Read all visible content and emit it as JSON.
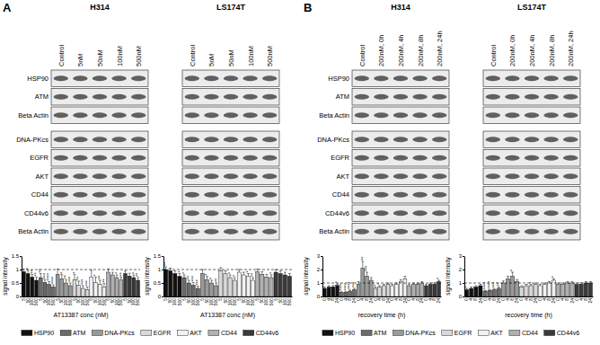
{
  "panels": [
    {
      "label": "A",
      "rows": [
        [
          "HSP90",
          "ATM",
          "Beta Actin"
        ],
        [
          "DNA-PKcs",
          "EGFR",
          "AKT",
          "CD44",
          "CD44v6",
          "Beta Actin"
        ]
      ],
      "blots": [
        {
          "title": "H314",
          "lanes": [
            "Control",
            "5nM",
            "50nM",
            "100nM",
            "500nM"
          ]
        },
        {
          "title": "LS174T",
          "lanes": [
            "Control",
            "5nM",
            "50nM",
            "100nM",
            "500nM"
          ]
        }
      ]
    },
    {
      "label": "B",
      "rows": [
        [
          "HSP90",
          "ATM",
          "Beta Actin"
        ],
        [
          "DNA-PKcs",
          "EGFR",
          "AKT",
          "CD44",
          "CD44v6",
          "Beta Actin"
        ]
      ],
      "blots": [
        {
          "title": "H314",
          "lanes": [
            "Control",
            "200nM, 0h",
            "200nM, 4h",
            "200nM, 8h",
            "200nM, 24h"
          ]
        },
        {
          "title": "LS174T",
          "lanes": [
            "Control",
            "200nM, 0h",
            "200nM, 4h",
            "200nM, 8h",
            "200nM, 24h"
          ]
        }
      ]
    }
  ],
  "chart_data": [
    {
      "type": "bar",
      "y_label": "signal intensity",
      "x_label": "AT13387 conc (nM)",
      "legend": "bottom",
      "categories": [
        "5",
        "50",
        "100",
        "500"
      ],
      "ylim": [
        0,
        1.5
      ],
      "yticks": [
        0,
        0.5,
        1,
        1.5
      ],
      "reference": 1,
      "series": [
        {
          "name": "HSP90",
          "color": "#111111",
          "values": [
            0.92,
            0.85,
            0.72,
            0.6
          ],
          "errors": [
            0.1,
            0.12,
            0.1,
            0.12
          ],
          "significance": [
            null,
            "*",
            "**",
            "**"
          ]
        },
        {
          "name": "ATM",
          "color": "#6b6b6b",
          "values": [
            0.7,
            0.52,
            0.45,
            0.35
          ],
          "errors": [
            0.15,
            0.1,
            0.1,
            0.08
          ],
          "significance": [
            "**",
            "***",
            "****",
            "****"
          ]
        },
        {
          "name": "DNA-PKcs",
          "color": "#9a9a9a",
          "values": [
            0.82,
            0.66,
            0.5,
            0.4
          ],
          "errors": [
            0.2,
            0.15,
            0.12,
            0.1
          ],
          "significance": [
            null,
            "*",
            "**",
            "***"
          ]
        },
        {
          "name": "EGFR",
          "color": "#d9d9d9",
          "values": [
            0.62,
            0.42,
            0.3,
            0.25
          ],
          "errors": [
            0.2,
            0.15,
            0.1,
            0.1
          ],
          "significance": [
            "*",
            "**",
            "***",
            "***"
          ]
        },
        {
          "name": "AKT",
          "color": "#f2f2f2",
          "values": [
            0.72,
            0.52,
            0.45,
            0.36
          ],
          "errors": [
            0.25,
            0.2,
            0.15,
            0.12
          ],
          "significance": [
            null,
            "*",
            "**",
            "**"
          ]
        },
        {
          "name": "CD44",
          "color": "#b0b0b0",
          "values": [
            0.9,
            0.8,
            0.7,
            0.62
          ],
          "errors": [
            0.12,
            0.1,
            0.1,
            0.1
          ],
          "significance": [
            null,
            null,
            "*",
            "**"
          ]
        },
        {
          "name": "CD44v6",
          "color": "#3a3a3a",
          "values": [
            0.85,
            0.76,
            0.7,
            0.6
          ],
          "errors": [
            0.1,
            0.1,
            0.1,
            0.1
          ],
          "significance": [
            null,
            null,
            "*",
            "**"
          ]
        }
      ]
    },
    {
      "type": "bar",
      "y_label": "signal intensity",
      "x_label": "AT13387 conc (nM)",
      "categories": [
        "5",
        "50",
        "100",
        "500"
      ],
      "ylim": [
        0,
        1.5
      ],
      "yticks": [
        0,
        0.5,
        1,
        1.5
      ],
      "reference": 1,
      "series": [
        {
          "name": "HSP90",
          "color": "#111111",
          "values": [
            1.0,
            0.95,
            0.85,
            0.75
          ],
          "errors": [
            0.1,
            0.1,
            0.1,
            0.1
          ],
          "significance": [
            "**",
            null,
            null,
            "*"
          ]
        },
        {
          "name": "ATM",
          "color": "#6b6b6b",
          "values": [
            0.7,
            0.5,
            0.42,
            0.3
          ],
          "errors": [
            0.1,
            0.1,
            0.1,
            0.08
          ],
          "significance": [
            "*",
            "**",
            "***",
            "***"
          ]
        },
        {
          "name": "DNA-PKcs",
          "color": "#9a9a9a",
          "values": [
            0.85,
            0.62,
            0.5,
            0.4
          ],
          "errors": [
            0.15,
            0.12,
            0.1,
            0.1
          ],
          "significance": [
            null,
            "*",
            "*",
            "**"
          ]
        },
        {
          "name": "EGFR",
          "color": "#d9d9d9",
          "values": [
            0.95,
            0.85,
            0.7,
            0.6
          ],
          "errors": [
            0.12,
            0.1,
            0.1,
            0.1
          ],
          "significance": [
            null,
            null,
            "*",
            "*"
          ]
        },
        {
          "name": "AKT",
          "color": "#f2f2f2",
          "values": [
            0.9,
            0.8,
            0.75,
            0.6
          ],
          "errors": [
            0.1,
            0.1,
            0.1,
            0.1
          ],
          "significance": [
            null,
            null,
            "*",
            "**"
          ]
        },
        {
          "name": "CD44",
          "color": "#b0b0b0",
          "values": [
            0.92,
            0.82,
            0.72,
            0.7
          ],
          "errors": [
            0.1,
            0.1,
            0.1,
            0.1
          ],
          "significance": [
            null,
            null,
            null,
            "*"
          ]
        },
        {
          "name": "CD44v6",
          "color": "#3a3a3a",
          "values": [
            0.9,
            0.85,
            0.8,
            0.75
          ],
          "errors": [
            0.1,
            0.1,
            0.1,
            0.1
          ],
          "significance": [
            null,
            null,
            null,
            null
          ]
        }
      ]
    },
    {
      "type": "bar",
      "y_label": "signal intensity",
      "x_label": "recovery time (h)",
      "legend": "bottom",
      "categories": [
        "0",
        "4",
        "8",
        "24"
      ],
      "ylim": [
        0,
        3
      ],
      "yticks": [
        0,
        1,
        2,
        3
      ],
      "reference": 1,
      "series": [
        {
          "name": "HSP90",
          "color": "#111111",
          "values": [
            0.6,
            0.7,
            0.72,
            0.82
          ],
          "errors": [
            0.1,
            0.1,
            0.1,
            0.1
          ],
          "significance": [
            null,
            null,
            null,
            "*"
          ]
        },
        {
          "name": "ATM",
          "color": "#6b6b6b",
          "values": [
            0.3,
            0.32,
            0.4,
            0.5
          ],
          "errors": [
            0.05,
            0.05,
            0.08,
            0.1
          ],
          "significance": [
            "****",
            "****",
            "****",
            "***"
          ]
        },
        {
          "name": "DNA-PKcs",
          "color": "#9a9a9a",
          "values": [
            0.9,
            2.1,
            1.5,
            1.2
          ],
          "errors": [
            0.2,
            0.5,
            0.3,
            0.2
          ],
          "significance": [
            null,
            "**",
            "***",
            null
          ]
        },
        {
          "name": "EGFR",
          "color": "#d9d9d9",
          "values": [
            0.6,
            0.7,
            0.8,
            0.9
          ],
          "errors": [
            0.1,
            0.1,
            0.1,
            0.1
          ],
          "significance": [
            "*",
            "*",
            null,
            null
          ]
        },
        {
          "name": "AKT",
          "color": "#f2f2f2",
          "values": [
            0.8,
            0.9,
            1.1,
            1.3
          ],
          "errors": [
            0.1,
            0.1,
            0.15,
            0.2
          ],
          "significance": [
            null,
            null,
            null,
            null
          ]
        },
        {
          "name": "CD44",
          "color": "#b0b0b0",
          "values": [
            0.8,
            0.9,
            0.9,
            1.0
          ],
          "errors": [
            0.1,
            0.1,
            0.1,
            0.1
          ],
          "significance": [
            null,
            null,
            null,
            null
          ]
        },
        {
          "name": "CD44v6",
          "color": "#3a3a3a",
          "values": [
            0.8,
            0.9,
            0.92,
            1.1
          ],
          "errors": [
            0.1,
            0.1,
            0.1,
            0.1
          ],
          "significance": [
            null,
            null,
            null,
            "*"
          ]
        }
      ]
    },
    {
      "type": "bar",
      "y_label": "signal intensity",
      "x_label": "recovery time (h)",
      "categories": [
        "0",
        "4",
        "8",
        "24"
      ],
      "ylim": [
        0,
        3
      ],
      "yticks": [
        0,
        1,
        2,
        3
      ],
      "reference": 1,
      "series": [
        {
          "name": "HSP90",
          "color": "#111111",
          "values": [
            0.5,
            0.6,
            0.7,
            0.8
          ],
          "errors": [
            0.1,
            0.1,
            0.1,
            0.1
          ],
          "significance": [
            "*",
            null,
            null,
            null
          ]
        },
        {
          "name": "ATM",
          "color": "#6b6b6b",
          "values": [
            0.4,
            0.45,
            0.5,
            0.6
          ],
          "errors": [
            0.05,
            0.05,
            0.08,
            0.1
          ],
          "significance": [
            "****",
            "****",
            "***",
            "**"
          ]
        },
        {
          "name": "DNA-PKcs",
          "color": "#9a9a9a",
          "values": [
            1.0,
            1.3,
            1.5,
            1.1
          ],
          "errors": [
            0.15,
            0.2,
            0.3,
            0.15
          ],
          "significance": [
            null,
            null,
            "*",
            null
          ]
        },
        {
          "name": "EGFR",
          "color": "#d9d9d9",
          "values": [
            0.7,
            0.8,
            0.8,
            0.9
          ],
          "errors": [
            0.1,
            0.1,
            0.1,
            0.1
          ],
          "significance": [
            null,
            null,
            "*",
            null
          ]
        },
        {
          "name": "AKT",
          "color": "#f2f2f2",
          "values": [
            0.8,
            0.9,
            1.0,
            1.2
          ],
          "errors": [
            0.1,
            0.1,
            0.1,
            0.1
          ],
          "significance": [
            null,
            null,
            null,
            "*"
          ]
        },
        {
          "name": "CD44",
          "color": "#b0b0b0",
          "values": [
            0.9,
            0.9,
            1.0,
            1.0
          ],
          "errors": [
            0.1,
            0.1,
            0.1,
            0.1
          ],
          "significance": [
            null,
            null,
            null,
            null
          ]
        },
        {
          "name": "CD44v6",
          "color": "#3a3a3a",
          "values": [
            0.9,
            0.92,
            1.0,
            1.0
          ],
          "errors": [
            0.1,
            0.1,
            0.1,
            0.1
          ],
          "significance": [
            null,
            null,
            null,
            null
          ]
        }
      ]
    }
  ]
}
